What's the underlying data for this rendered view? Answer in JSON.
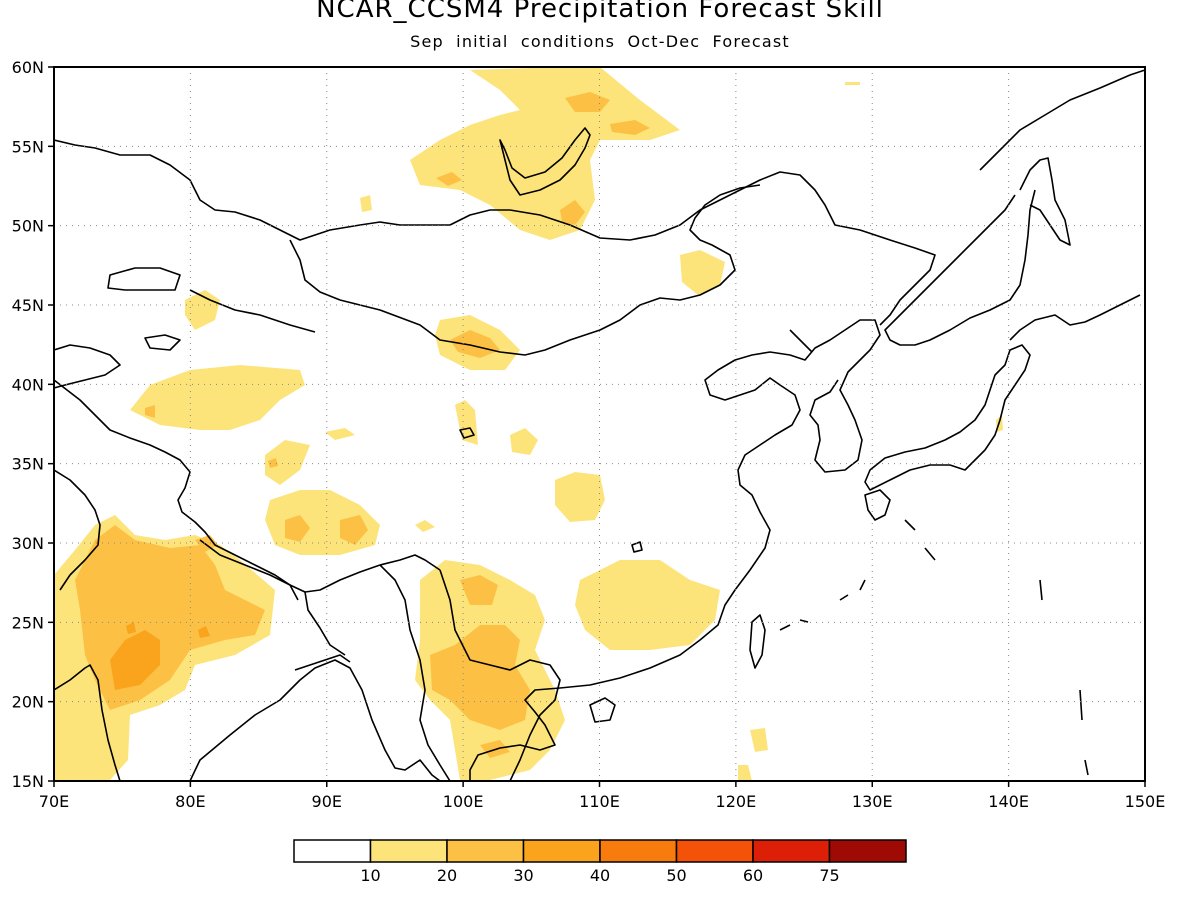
{
  "map": {
    "title": "NCAR_CCSM4 Precipitation Forecast Skill",
    "subtitle": "Sep initial conditions  Oct-Dec Forecast",
    "lon_range": [
      70,
      150
    ],
    "lat_range": [
      15,
      60
    ],
    "lon_ticks": [
      "70E",
      "80E",
      "90E",
      "100E",
      "110E",
      "120E",
      "130E",
      "140E",
      "150E"
    ],
    "lat_ticks": [
      "15N",
      "20N",
      "25N",
      "30N",
      "35N",
      "40N",
      "45N",
      "50N",
      "55N",
      "60N"
    ],
    "gridlines": "dotted",
    "region": "East Asia",
    "colorbar": {
      "labels": [
        "10",
        "20",
        "30",
        "40",
        "50",
        "60",
        "75"
      ],
      "colors": [
        "#ffffff",
        "#fde47a",
        "#fcc045",
        "#faa31c",
        "#f87b0e",
        "#f45109",
        "#dc1f06",
        "#a00a04"
      ]
    },
    "regions_shaded": [
      {
        "name": "Central India",
        "level": "20-30"
      },
      {
        "name": "Northern India",
        "level": "20-30"
      },
      {
        "name": "Indochina",
        "level": "20-30"
      },
      {
        "name": "Baikal region",
        "level": "10-20"
      },
      {
        "name": "Southeast China",
        "level": "10-20"
      },
      {
        "name": "Tibetan Plateau",
        "level": "10-20"
      },
      {
        "name": "Xinjiang",
        "level": "10-20"
      },
      {
        "name": "Mongolia",
        "level": "10-20"
      }
    ]
  }
}
